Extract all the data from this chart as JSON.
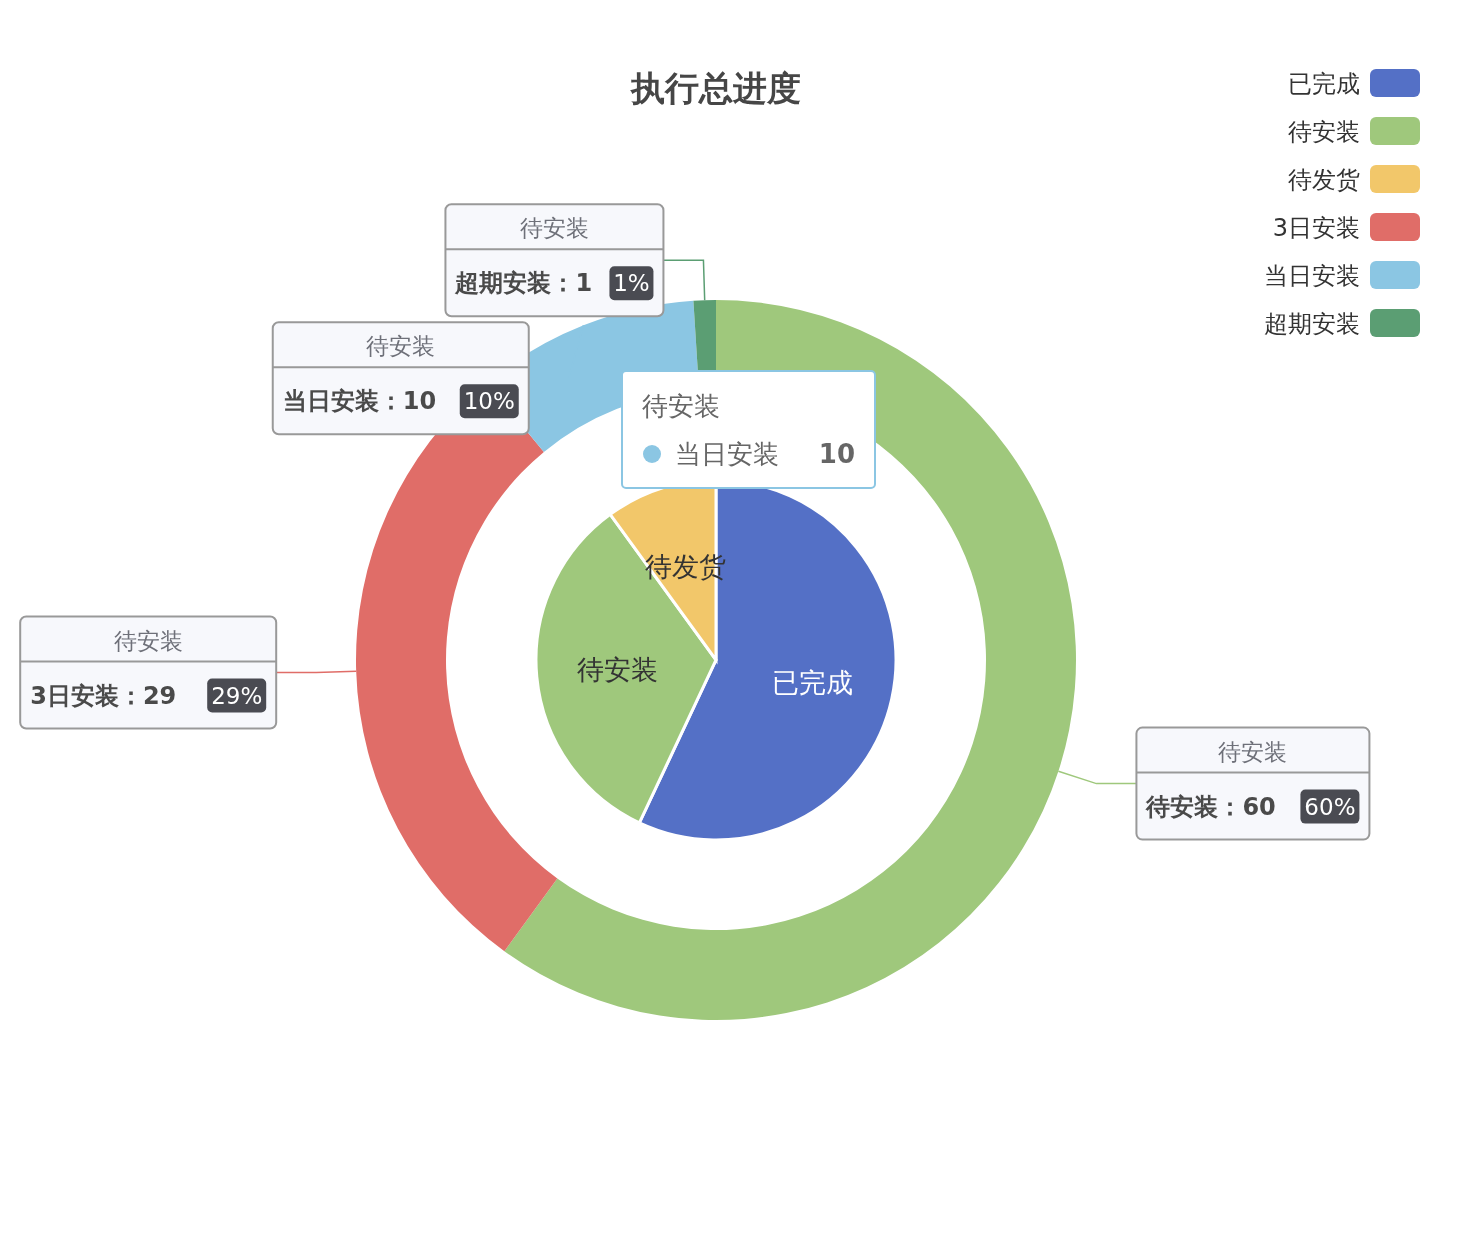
{
  "chart_data": [
    {
      "type": "pie",
      "title": "执行总进度",
      "legend": "top right",
      "categories": [
        "已完成",
        "待安装",
        "待发货"
      ],
      "values": [
        57,
        33,
        10
      ],
      "colors": [
        "#5470c6",
        "#9fc87c",
        "#f2c76a"
      ],
      "annotations": [
        "待安装",
        "当日安装",
        "10"
      ]
    },
    {
      "type": "donut",
      "legend": "top right",
      "categories": [
        "待安装",
        "3日安装",
        "当日安装",
        "超期安装"
      ],
      "colors": [
        "#9fc87c",
        "#e06d68",
        "#8bc6e3",
        "#5b9e73"
      ],
      "series": [
        {
          "name": "待安装",
          "values": [
            60,
            29,
            10,
            1
          ]
        }
      ],
      "value_labels": [
        "待安装：60 60%",
        "3日安装：29 29%",
        "当日安装：10 10%",
        "超期安装：1 1%"
      ]
    }
  ]
}
